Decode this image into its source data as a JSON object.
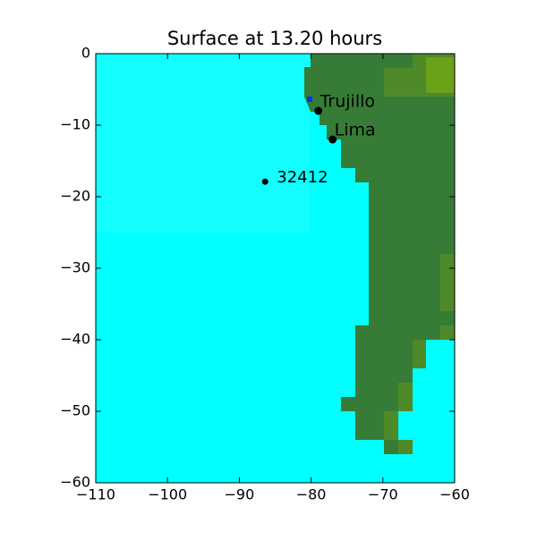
{
  "chart_data": {
    "type": "map",
    "title": "Surface at 13.20 hours",
    "xlim": [
      -110,
      -60
    ],
    "xticks": [
      {
        "value": -110,
        "label": "−110"
      },
      {
        "value": -100,
        "label": "−100"
      },
      {
        "value": -90,
        "label": "−90"
      },
      {
        "value": -80,
        "label": "−80"
      },
      {
        "value": -70,
        "label": "−70"
      },
      {
        "value": -60,
        "label": "−60"
      }
    ],
    "ylim": [
      -60,
      0
    ],
    "yticks": [
      0,
      {
        "value": -10,
        "label": "−10"
      },
      {
        "value": -20,
        "label": "−20"
      },
      {
        "value": -30,
        "label": "−30"
      },
      {
        "value": -40,
        "label": "−40"
      },
      {
        "value": -50,
        "label": "−50"
      },
      {
        "value": -60,
        "label": "−60"
      }
    ],
    "points": [
      {
        "name": "Trujillo",
        "x": -79,
        "y": -8
      },
      {
        "name": "Lima",
        "x": -77,
        "y": -12
      },
      {
        "name": "32412",
        "x": -86.4,
        "y": -17.9
      }
    ],
    "color": "#000000"
  }
}
